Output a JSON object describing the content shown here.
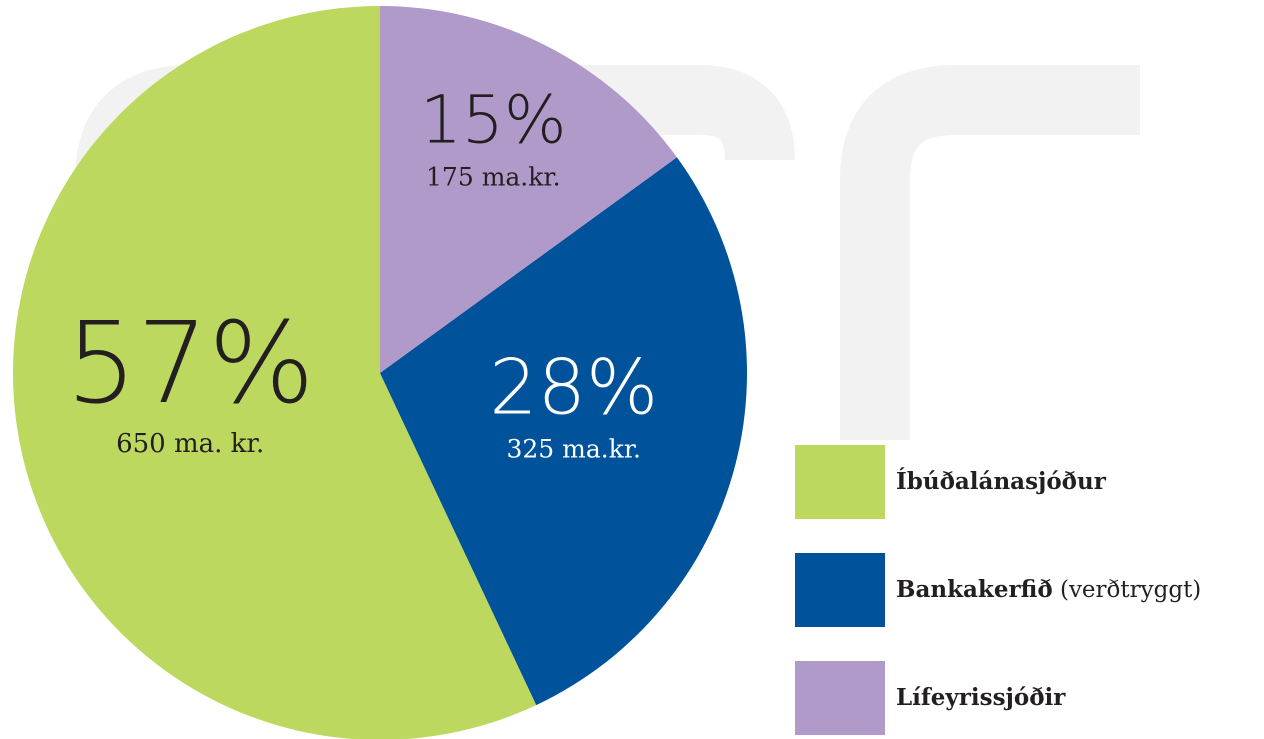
{
  "chart_data": {
    "type": "pie",
    "categories": [
      "Íbúðalánasjóður",
      "Bankakerfið (verðtryggt)",
      "Lífeyrissjóðir"
    ],
    "values": [
      57,
      28,
      15
    ],
    "value_labels": [
      "57%",
      "28%",
      "15%"
    ],
    "amount_labels": [
      "650 ma. kr.",
      "325 ma.kr.",
      "175 ma.kr."
    ],
    "colors": [
      "#bcd85f",
      "#00529b",
      "#b09ac9"
    ],
    "label_colors": [
      "#231f20",
      "#ffffff",
      "#231f20"
    ],
    "start": "top",
    "direction": "counterclockwise"
  }
}
